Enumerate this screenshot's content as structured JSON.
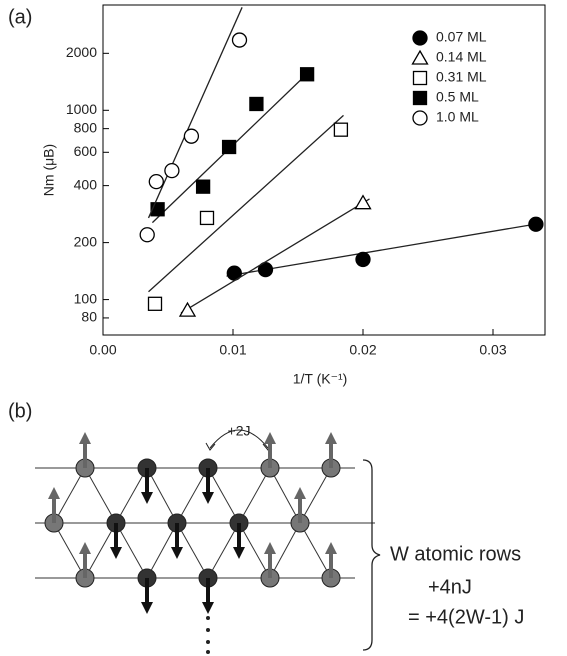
{
  "chart_data": {
    "type": "scatter",
    "panel_label": "(a)",
    "xlabel": "1/T (K⁻¹)",
    "ylabel": "Nm (μB)",
    "xlim": [
      0,
      0.034
    ],
    "ylim": [
      65,
      3600
    ],
    "ylog": true,
    "xticks": [
      {
        "value": 0,
        "label": "0.00"
      },
      0.01,
      0.02,
      0.03
    ],
    "yticks": [
      80,
      100,
      200,
      400,
      600,
      800,
      1000,
      2000
    ],
    "legend": "upper right",
    "series": [
      {
        "name": "0.07 ML",
        "marker": "circle",
        "filled": true,
        "color": "#000",
        "x": [
          0.0101,
          0.0125,
          0.02,
          0.0333
        ],
        "values": [
          138,
          144,
          163,
          250
        ],
        "fit_x": [
          0.0095,
          0.0335
        ],
        "fit_y": [
          133,
          252
        ]
      },
      {
        "name": "0.14 ML",
        "marker": "triangle",
        "filled": false,
        "color": "#000",
        "x": [
          0.0065,
          0.02
        ],
        "values": [
          88,
          325
        ],
        "fit_x": [
          0.006,
          0.0205
        ],
        "fit_y": [
          85,
          340
        ]
      },
      {
        "name": "0.31 ML",
        "marker": "square",
        "filled": false,
        "color": "#000",
        "x": [
          0.004,
          0.008,
          0.0183
        ],
        "values": [
          95,
          270,
          790
        ],
        "fit_x": [
          0.0035,
          0.0185
        ],
        "fit_y": [
          110,
          940
        ]
      },
      {
        "name": "0.5 ML",
        "marker": "square",
        "filled": true,
        "color": "#000",
        "x": [
          0.0042,
          0.0077,
          0.0097,
          0.0118,
          0.0157
        ],
        "values": [
          300,
          395,
          640,
          1080,
          1550
        ],
        "fit_x": [
          0.0038,
          0.0157
        ],
        "fit_y": [
          255,
          1560
        ]
      },
      {
        "name": "1.0 ML",
        "marker": "circle",
        "filled": false,
        "color": "#000",
        "x": [
          0.0034,
          0.0041,
          0.0053,
          0.0068,
          0.0105
        ],
        "values": [
          220,
          420,
          480,
          730,
          2350
        ],
        "fit_x": [
          0.0035,
          0.0107
        ],
        "fit_y": [
          270,
          3500
        ]
      }
    ]
  },
  "diagram": {
    "panel_label": "(b)",
    "coupling": "+2J",
    "rows_label": "W atomic rows",
    "energy": "+4nJ",
    "energy_formula": "= +4(2W-1) J"
  }
}
